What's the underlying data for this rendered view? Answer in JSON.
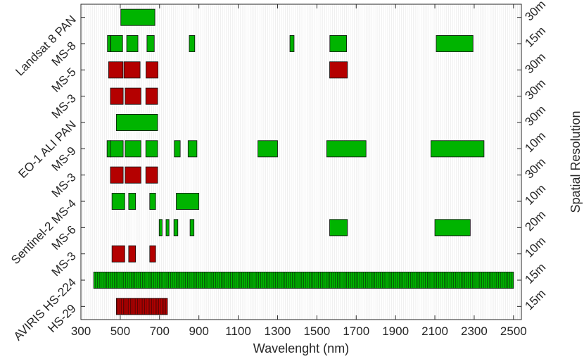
{
  "chart_data": {
    "type": "bar",
    "subtype": "range-bar",
    "title": "",
    "xlabel": "Wavelenght (nm)",
    "ylabel_right": "Spatial Resolution",
    "xlim": [
      300,
      2540
    ],
    "x_ticks": [
      300,
      500,
      700,
      900,
      1100,
      1300,
      1500,
      1700,
      1900,
      2100,
      2300,
      2500
    ],
    "grid": "vertical-minor",
    "colors": {
      "green": "#00b400",
      "red": "#b40000"
    },
    "rows": [
      {
        "label": "Landsat 8 PAN",
        "resolution": "30m",
        "color": "green",
        "bands": [
          [
            503,
            676
          ]
        ]
      },
      {
        "label": "MS-8",
        "resolution": "15m",
        "color": "green",
        "bands": [
          [
            435,
            451
          ],
          [
            452,
            512
          ],
          [
            533,
            590
          ],
          [
            636,
            673
          ],
          [
            851,
            879
          ],
          [
            1363,
            1384
          ],
          [
            1566,
            1651
          ],
          [
            2107,
            2294
          ]
        ]
      },
      {
        "label": "MS-5",
        "resolution": "30m",
        "color": "red",
        "bands": [
          [
            441,
            514
          ],
          [
            519,
            601
          ],
          [
            631,
            692
          ],
          [
            1565,
            1655
          ]
        ]
      },
      {
        "label": "MS-3",
        "resolution": "30m",
        "color": "red",
        "bands": [
          [
            450,
            515
          ],
          [
            525,
            605
          ],
          [
            630,
            690
          ]
        ]
      },
      {
        "label": "EO-1 ALI PAN",
        "resolution": "30m",
        "color": "green",
        "bands": [
          [
            480,
            690
          ]
        ]
      },
      {
        "label": "MS-9",
        "resolution": "10m",
        "color": "green",
        "bands": [
          [
            433,
            453
          ],
          [
            450,
            515
          ],
          [
            525,
            605
          ],
          [
            630,
            690
          ],
          [
            775,
            805
          ],
          [
            845,
            890
          ],
          [
            1200,
            1300
          ],
          [
            1550,
            1750
          ],
          [
            2080,
            2350
          ]
        ]
      },
      {
        "label": "MS-3",
        "resolution": "30m",
        "color": "red",
        "bands": [
          [
            450,
            515
          ],
          [
            525,
            605
          ],
          [
            630,
            690
          ]
        ]
      },
      {
        "label": "Sentinel-2 MS-4",
        "resolution": "10m",
        "color": "green",
        "bands": [
          [
            458,
            523
          ],
          [
            543,
            578
          ],
          [
            650,
            680
          ],
          [
            785,
            900
          ]
        ]
      },
      {
        "label": "MS-6",
        "resolution": "20m",
        "color": "green",
        "bands": [
          [
            698,
            713
          ],
          [
            733,
            748
          ],
          [
            773,
            793
          ],
          [
            855,
            875
          ],
          [
            1565,
            1655
          ],
          [
            2100,
            2280
          ]
        ]
      },
      {
        "label": "MS-3",
        "resolution": "10m",
        "color": "red",
        "bands": [
          [
            458,
            523
          ],
          [
            543,
            578
          ],
          [
            650,
            680
          ]
        ]
      },
      {
        "label": "AVIRIS HS-224",
        "resolution": "15m",
        "color": "green",
        "bands": [
          [
            365,
            2500
          ]
        ],
        "subdivisions": 224
      },
      {
        "label": "HS-29",
        "resolution": "15m",
        "color": "red",
        "bands": [
          [
            480,
            740
          ]
        ],
        "subdivisions": 29
      }
    ]
  }
}
